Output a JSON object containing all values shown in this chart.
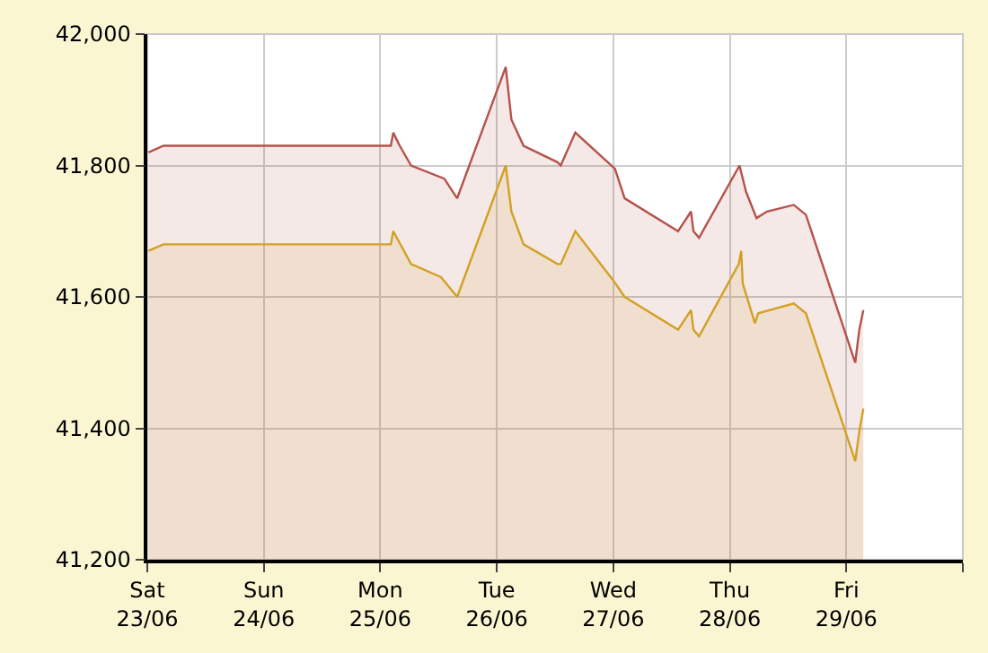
{
  "chart_data": {
    "type": "area",
    "series": [
      {
        "color": "#b5524a",
        "x": [
          "--06-23T00:15",
          "--06-23T03:20",
          "--06-25T02:10",
          "--06-25T02:40",
          "--06-25T04:00",
          "--06-25T06:20",
          "--06-25T13:10",
          "--06-25T15:50",
          "--06-26T01:50",
          "--06-26T03:00",
          "--06-26T05:30",
          "--06-26T12:30",
          "--06-26T13:10",
          "--06-26T16:10",
          "--06-27T00:20",
          "--06-27T02:20",
          "--06-27T13:20",
          "--06-27T16:00",
          "--06-27T16:30",
          "--06-27T17:40",
          "--06-28T02:00",
          "--06-28T03:20",
          "--06-28T05:30",
          "--06-28T07:40",
          "--06-28T13:10",
          "--06-28T15:40",
          "--06-29T01:50",
          "--06-29T02:40",
          "--06-29T03:30"
        ],
        "values": [
          41820,
          41830,
          41830,
          41850,
          41830,
          41800,
          41780,
          41750,
          41950,
          41870,
          41830,
          41805,
          41800,
          41850,
          41795,
          41750,
          41700,
          41730,
          41700,
          41690,
          41800,
          41760,
          41720,
          41730,
          41740,
          41725,
          41500,
          41550,
          41580
        ]
      },
      {
        "color": "#d2a024",
        "x": [
          "--06-23T00:15",
          "--06-23T03:20",
          "--06-25T02:10",
          "--06-25T02:40",
          "--06-25T06:20",
          "--06-25T12:30",
          "--06-25T15:50",
          "--06-26T01:50",
          "--06-26T03:00",
          "--06-26T05:30",
          "--06-26T12:30",
          "--06-26T13:10",
          "--06-26T16:10",
          "--06-27T00:00",
          "--06-27T02:20",
          "--06-27T13:20",
          "--06-27T16:00",
          "--06-27T16:30",
          "--06-27T17:40",
          "--06-28T01:50",
          "--06-28T02:20",
          "--06-28T02:40",
          "--06-28T05:10",
          "--06-28T05:50",
          "--06-28T13:10",
          "--06-28T15:40",
          "--06-29T01:50",
          "--06-29T02:40",
          "--06-29T03:30"
        ],
        "values": [
          41670,
          41680,
          41680,
          41700,
          41650,
          41630,
          41600,
          41800,
          41730,
          41680,
          41650,
          41650,
          41700,
          41625,
          41600,
          41550,
          41580,
          41550,
          41540,
          41650,
          41670,
          41620,
          41560,
          41575,
          41590,
          41575,
          41350,
          41395,
          41430
        ]
      }
    ],
    "xlim": [
      "--06-23",
      "--06-30"
    ],
    "xticks": [
      {
        "value": "--06-23",
        "label": "Sat\n23/06"
      },
      {
        "value": "--06-24",
        "label": "Sun\n24/06"
      },
      {
        "value": "--06-25",
        "label": "Mon\n25/06"
      },
      {
        "value": "--06-26",
        "label": "Tue\n26/06"
      },
      {
        "value": "--06-27",
        "label": "Wed\n27/06"
      },
      {
        "value": "--06-28",
        "label": "Thu\n28/06"
      },
      {
        "value": "--06-29",
        "label": "Fri\n29/06"
      },
      {
        "value": "--06-30",
        "label": null
      }
    ],
    "ylim": [
      41200,
      42000
    ],
    "yticks": [
      {
        "value": 41200,
        "label": "41,200"
      },
      {
        "value": 41400,
        "label": "41,400"
      },
      {
        "value": 41600,
        "label": "41,600"
      },
      {
        "value": 41800,
        "label": "41,800"
      },
      {
        "value": 42000,
        "label": "42,000"
      }
    ],
    "grid": true
  }
}
